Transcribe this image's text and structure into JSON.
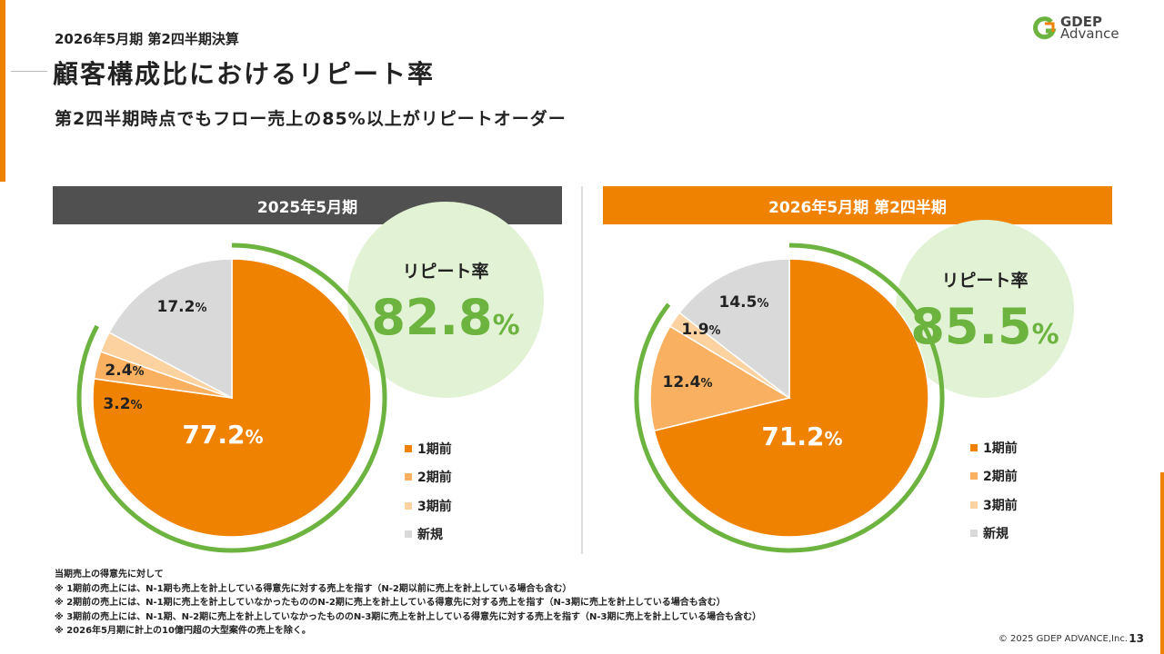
{
  "header": {
    "period": "2026年5月期 第2四半期決算",
    "title": "顧客構成比におけるリピート率",
    "subtitle": "第2四半期時点でもフロー売上の85%以上がリピートオーダー"
  },
  "logo": {
    "line1": "GDEP",
    "line2": "Advance"
  },
  "colors": {
    "1期前": "#EF8200",
    "2期前": "#F9B060",
    "3期前": "#FCD3A0",
    "新規": "#D9D9D9",
    "repeat_arc": "#6DB33F",
    "repeat_bg": "#E2F2D5"
  },
  "chart_data": [
    {
      "type": "pie",
      "title": "2025年5月期",
      "categories": [
        "1期前",
        "2期前",
        "3期前",
        "新規"
      ],
      "values": [
        77.2,
        3.2,
        2.4,
        17.2
      ],
      "labels": [
        "77.2%",
        "3.2%",
        "2.4%",
        "17.2%"
      ],
      "repeat_label": "リピート率",
      "repeat_value": "82.8",
      "repeat_unit": "%",
      "legend_placement": "right"
    },
    {
      "type": "pie",
      "title": "2026年5月期 第2四半期",
      "categories": [
        "1期前",
        "2期前",
        "3期前",
        "新規"
      ],
      "values": [
        71.2,
        12.4,
        1.9,
        14.5
      ],
      "labels": [
        "71.2%",
        "12.4%",
        "1.9%",
        "14.5%"
      ],
      "repeat_label": "リピート率",
      "repeat_value": "85.5",
      "repeat_unit": "%",
      "legend_placement": "right"
    }
  ],
  "notes": [
    "当期売上の得意先に対して",
    "※ 1期前の売上には、N-1期も売上を計上している得意先に対する売上を指す（N-2期以前に売上を計上している場合も含む）",
    "※ 2期前の売上には、N-1期に売上を計上していなかったもののN-2期に売上を計上している得意先に対する売上を指す（N-3期に売上を計上している場合も含む）",
    "※ 3期前の売上には、N-1期、N-2期に売上を計上していなかったもののN-3期に売上を計上している得意先に対する売上を指す（N-3期に売上を計上している場合も含む）",
    "※ 2026年5月期に計上の10億円超の大型案件の売上を除く。"
  ],
  "footer": {
    "copyright": "© 2025 GDEP ADVANCE,Inc.",
    "page": "13"
  }
}
